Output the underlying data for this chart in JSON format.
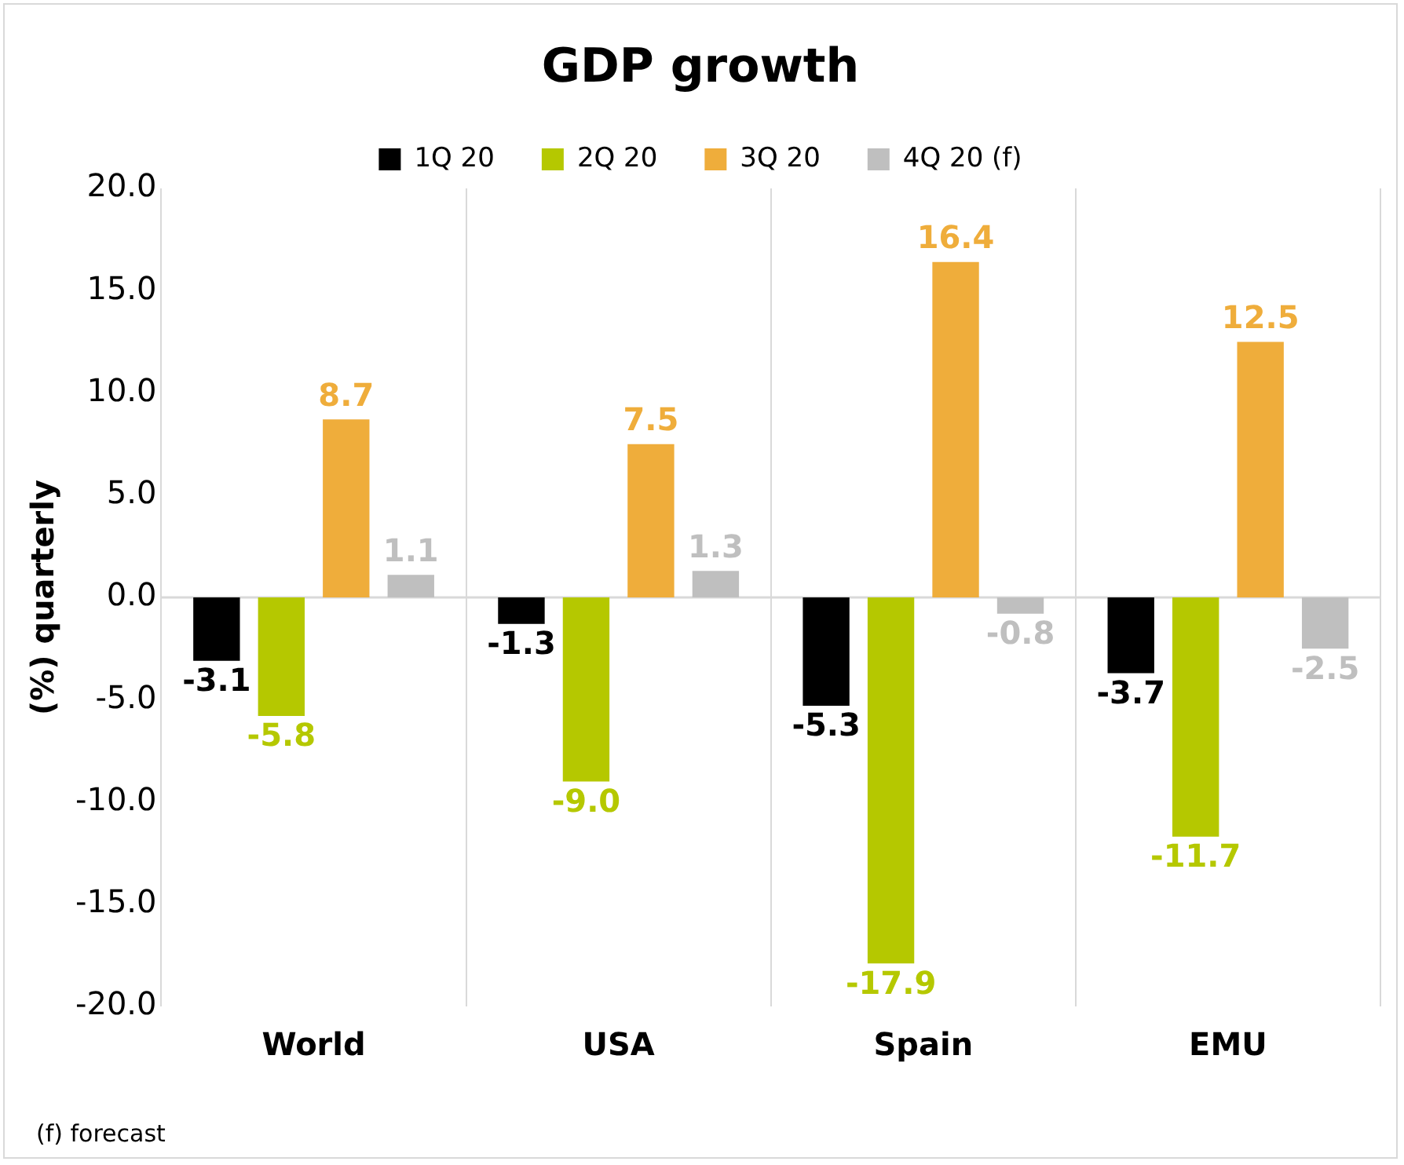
{
  "chart_data": {
    "type": "bar",
    "title": "GDP growth",
    "ylabel": "(%) quarterly",
    "categories": [
      "World",
      "USA",
      "Spain",
      "EMU"
    ],
    "series": [
      {
        "name": "1Q 20",
        "color": "#000000",
        "values": [
          -3.1,
          -1.3,
          -5.3,
          -3.7
        ],
        "value_labels": [
          "-3.1",
          "-1.3",
          "-5.3",
          "-3.7"
        ]
      },
      {
        "name": "2Q 20",
        "color": "#b5c800",
        "values": [
          -5.8,
          -9.0,
          -17.9,
          -11.7
        ],
        "value_labels": [
          "-5.8",
          "-9.0",
          "-17.9",
          "-11.7"
        ]
      },
      {
        "name": "3Q 20",
        "color": "#efad3b",
        "values": [
          8.7,
          7.5,
          16.4,
          12.5
        ],
        "value_labels": [
          "8.7",
          "7.5",
          "16.4",
          "12.5"
        ]
      },
      {
        "name": "4Q 20 (f)",
        "color": "#bfbfbf",
        "values": [
          1.1,
          1.3,
          -0.8,
          -2.5
        ],
        "value_labels": [
          "1.1",
          "1.3",
          "-0.8",
          "-2.5"
        ]
      }
    ],
    "ylim": [
      -20,
      20
    ],
    "yticks": [
      {
        "value": -20,
        "label": "-20.0"
      },
      {
        "value": -15,
        "label": "-15.0"
      },
      {
        "value": -10,
        "label": "-10.0"
      },
      {
        "value": -5,
        "label": "-5.0"
      },
      {
        "value": 0,
        "label": "0.0"
      },
      {
        "value": 5,
        "label": "5.0"
      },
      {
        "value": 10,
        "label": "10.0"
      },
      {
        "value": 15,
        "label": "15.0"
      },
      {
        "value": 20,
        "label": "20.0"
      }
    ],
    "ref_lines": [
      {
        "axis": "y",
        "value": 0,
        "color": "#d9d9d9"
      }
    ],
    "grid": "x",
    "legend": "top",
    "annotations": [
      "(f) forecast"
    ]
  }
}
